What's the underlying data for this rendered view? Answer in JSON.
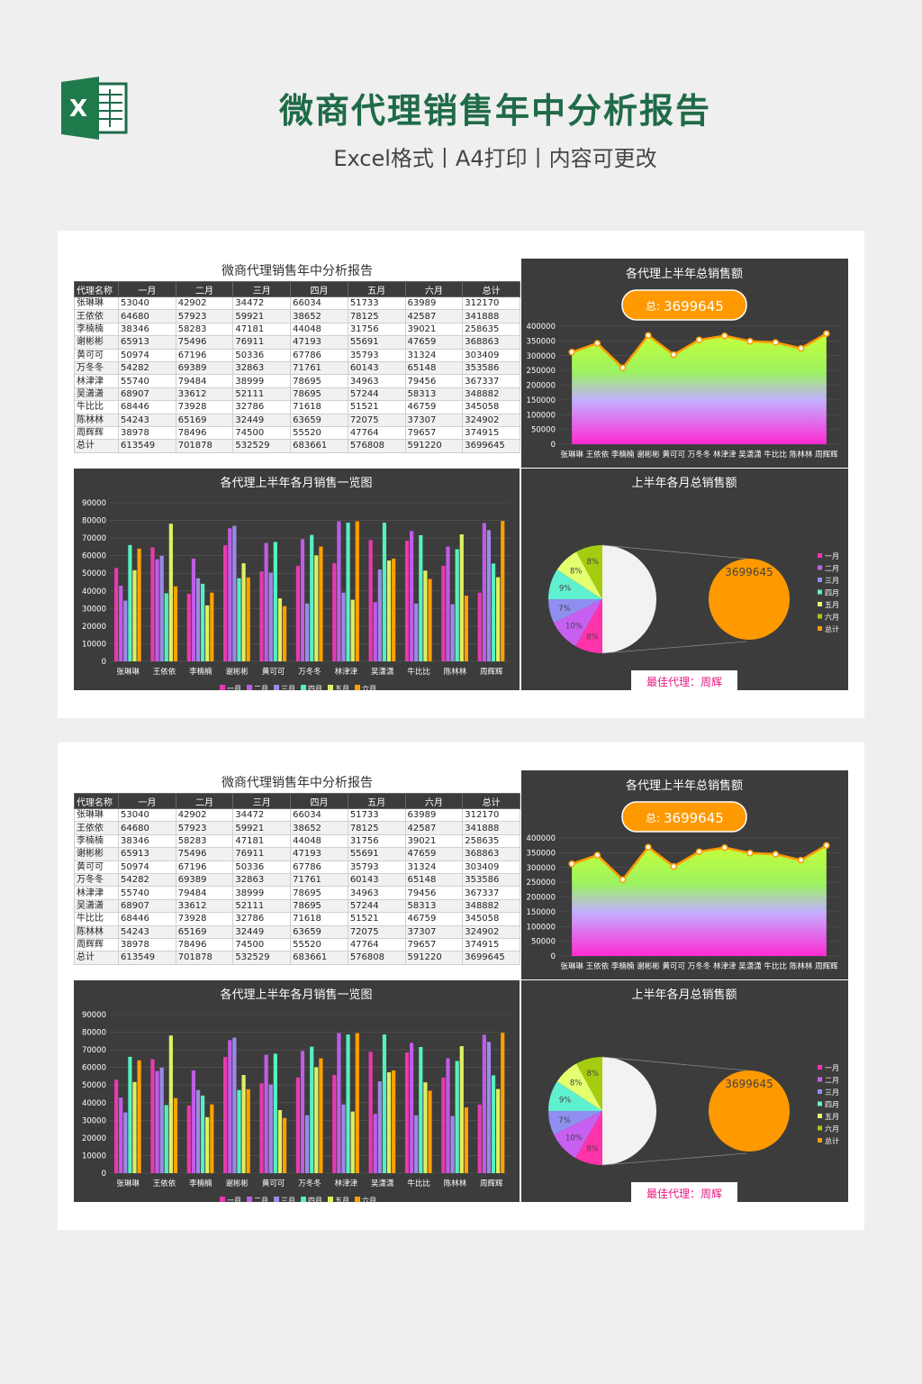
{
  "header": {
    "title": "微商代理销售年中分析报告",
    "subtitle": "Excel格式丨A4打印丨内容可更改",
    "logo_letter": "X"
  },
  "report": {
    "table_title": "微商代理销售年中分析报告",
    "columns": [
      "代理名称",
      "一月",
      "二月",
      "三月",
      "四月",
      "五月",
      "六月",
      "总计"
    ],
    "rows": [
      [
        "张琳琳",
        "53040",
        "42902",
        "34472",
        "66034",
        "51733",
        "63989",
        "312170"
      ],
      [
        "王依依",
        "64680",
        "57923",
        "59921",
        "38652",
        "78125",
        "42587",
        "341888"
      ],
      [
        "李楠楠",
        "38346",
        "58283",
        "47181",
        "44048",
        "31756",
        "39021",
        "258635"
      ],
      [
        "谢彬彬",
        "65913",
        "75496",
        "76911",
        "47193",
        "55691",
        "47659",
        "368863"
      ],
      [
        "黄可可",
        "50974",
        "67196",
        "50336",
        "67786",
        "35793",
        "31324",
        "303409"
      ],
      [
        "万冬冬",
        "54282",
        "69389",
        "32863",
        "71761",
        "60143",
        "65148",
        "353586"
      ],
      [
        "林津津",
        "55740",
        "79484",
        "38999",
        "78695",
        "34963",
        "79456",
        "367337"
      ],
      [
        "吴潇潇",
        "68907",
        "33612",
        "52111",
        "78695",
        "57244",
        "58313",
        "348882"
      ],
      [
        "牛比比",
        "68446",
        "73928",
        "32786",
        "71618",
        "51521",
        "46759",
        "345058"
      ],
      [
        "陈林林",
        "54243",
        "65169",
        "32449",
        "63659",
        "72075",
        "37307",
        "324902"
      ],
      [
        "周辉辉",
        "38978",
        "78496",
        "74500",
        "55520",
        "47764",
        "79657",
        "374915"
      ],
      [
        "总计",
        "613549",
        "701878",
        "532529",
        "683661",
        "576808",
        "591220",
        "3699645"
      ]
    ],
    "area_title": "各代理上半年总销售额",
    "total_badge": "3699645",
    "total_prefix": "总:",
    "bar_title": "各代理上半年各月销售一览图",
    "pie_title": "上半年各月总销售额",
    "pie_total_label": "3699645",
    "best_agent": "最佳代理：周辉",
    "bar_legend": [
      "一月",
      "二月",
      "三月",
      "四月",
      "五月",
      "六月"
    ],
    "pie_legend": [
      "一月",
      "二月",
      "三月",
      "四月",
      "五月",
      "六月",
      "总计"
    ]
  },
  "colors": {
    "title_green": "#1f6b48",
    "panel_bg": "#3c3c3c",
    "accent_orange": "#ff9900",
    "best_agent_pink": "#e8187f",
    "series": [
      "#e83ab0",
      "#c05ce8",
      "#9a8be8",
      "#56f0c0",
      "#dff060",
      "#ffa000"
    ],
    "pie": [
      "#ff33aa",
      "#c760f0",
      "#8f8ff0",
      "#5ff0d0",
      "#e4ff70",
      "#a6cc10",
      "#f2f2f2"
    ]
  },
  "chart_data": [
    {
      "type": "area",
      "title": "各代理上半年总销售额",
      "categories": [
        "张琳琳",
        "王依依",
        "李楠楠",
        "谢彬彬",
        "黄可可",
        "万冬冬",
        "林津津",
        "吴潇潇",
        "牛比比",
        "陈林林",
        "周辉辉"
      ],
      "values": [
        312170,
        341888,
        258635,
        368863,
        303409,
        353586,
        367337,
        348882,
        345058,
        324902,
        374915
      ],
      "yticks": [
        "0",
        "50000",
        "100000",
        "150000",
        "200000",
        "250000",
        "300000",
        "350000",
        "400000"
      ],
      "ylim": [
        0,
        400000
      ]
    },
    {
      "type": "bar",
      "title": "各代理上半年各月销售一览图",
      "categories": [
        "张琳琳",
        "王依依",
        "李楠楠",
        "谢彬彬",
        "黄可可",
        "万冬冬",
        "林津津",
        "吴潇潇",
        "牛比比",
        "陈林林",
        "周辉辉"
      ],
      "series": [
        {
          "name": "一月",
          "values": [
            53040,
            64680,
            38346,
            65913,
            50974,
            54282,
            55740,
            68907,
            68446,
            54243,
            38978
          ]
        },
        {
          "name": "二月",
          "values": [
            42902,
            57923,
            58283,
            75496,
            67196,
            69389,
            79484,
            33612,
            73928,
            65169,
            78496
          ]
        },
        {
          "name": "三月",
          "values": [
            34472,
            59921,
            47181,
            76911,
            50336,
            32863,
            38999,
            52111,
            32786,
            32449,
            74500
          ]
        },
        {
          "name": "四月",
          "values": [
            66034,
            38652,
            44048,
            47193,
            67786,
            71761,
            78695,
            78695,
            71618,
            63659,
            55520
          ]
        },
        {
          "name": "五月",
          "values": [
            51733,
            78125,
            31756,
            55691,
            35793,
            60143,
            34963,
            57244,
            51521,
            72075,
            47764
          ]
        },
        {
          "name": "六月",
          "values": [
            63989,
            42587,
            39021,
            47659,
            31324,
            65148,
            79456,
            58313,
            46759,
            37307,
            79657
          ]
        }
      ],
      "yticks": [
        "0",
        "10000",
        "20000",
        "30000",
        "40000",
        "50000",
        "60000",
        "70000",
        "80000",
        "90000"
      ],
      "ylim": [
        0,
        90000
      ],
      "legend": "bottom"
    },
    {
      "type": "pie",
      "title": "上半年各月总销售额",
      "labels": [
        "一月",
        "二月",
        "三月",
        "四月",
        "五月",
        "六月",
        "总计"
      ],
      "values": [
        613549,
        701878,
        532529,
        683661,
        576808,
        591220,
        3699645
      ],
      "visible_labels": [
        "8%",
        "10%",
        "7%",
        "9%",
        "8%",
        "8%"
      ],
      "legend": "right"
    }
  ]
}
